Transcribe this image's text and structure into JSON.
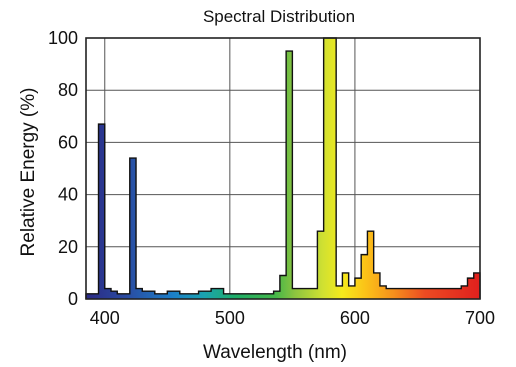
{
  "chart_data": {
    "type": "area",
    "title": "Spectral Distribution",
    "xlabel": "Wavelength (nm)",
    "ylabel": "Relative Energy (%)",
    "xlim": [
      385,
      700
    ],
    "ylim": [
      0,
      100
    ],
    "x_ticks": [
      400,
      500,
      600,
      700
    ],
    "y_ticks": [
      0,
      20,
      40,
      60,
      80,
      100
    ],
    "grid": true,
    "fill": "visible-spectrum-gradient",
    "bin_width": 5,
    "bins_start": [
      385,
      390,
      395,
      400,
      405,
      410,
      415,
      420,
      425,
      430,
      435,
      440,
      445,
      450,
      455,
      460,
      465,
      470,
      475,
      480,
      485,
      490,
      495,
      500,
      505,
      510,
      515,
      520,
      525,
      530,
      535,
      540,
      545,
      550,
      555,
      560,
      565,
      570,
      575,
      580,
      585,
      590,
      595,
      600,
      605,
      610,
      615,
      620,
      625,
      630,
      635,
      640,
      645,
      650,
      655,
      660,
      665,
      670,
      675,
      680,
      685,
      690,
      695
    ],
    "values": [
      2,
      2,
      67,
      4,
      3,
      2,
      2,
      54,
      4,
      3,
      3,
      2,
      2,
      3,
      3,
      2,
      2,
      2,
      3,
      3,
      4,
      4,
      2,
      2,
      2,
      2,
      2,
      2,
      2,
      2,
      3,
      9,
      95,
      4,
      4,
      4,
      4,
      26,
      100,
      100,
      5,
      10,
      5,
      8,
      17,
      26,
      10,
      5,
      4,
      4,
      4,
      4,
      4,
      4,
      4,
      4,
      4,
      4,
      4,
      4,
      5,
      8,
      10
    ]
  }
}
